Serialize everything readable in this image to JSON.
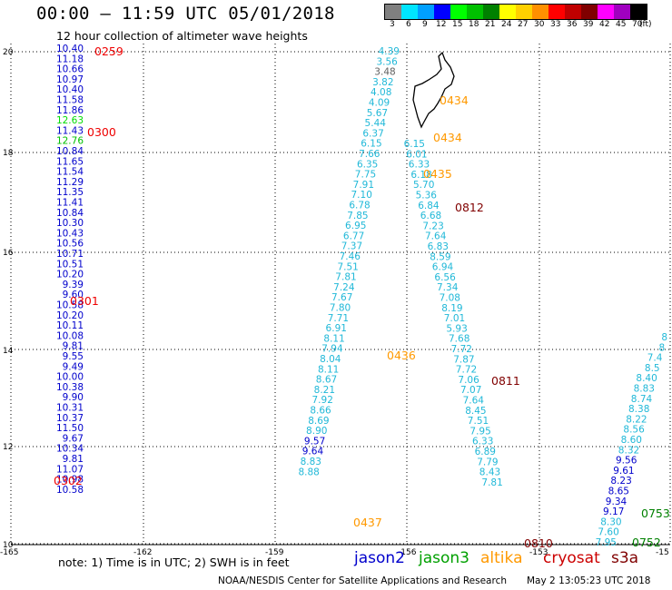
{
  "title": "00:00 – 11:59 UTC 05/01/2018",
  "subtitle": "12 hour collection of altimeter wave heights",
  "legend": {
    "unit": "(ft)",
    "bins": [
      {
        "label": "3",
        "color": "#808080"
      },
      {
        "label": "6",
        "color": "#00e5ff"
      },
      {
        "label": "9",
        "color": "#00a0ff"
      },
      {
        "label": "12",
        "color": "#0000ff"
      },
      {
        "label": "15",
        "color": "#00ff00"
      },
      {
        "label": "18",
        "color": "#00c000"
      },
      {
        "label": "21",
        "color": "#008000"
      },
      {
        "label": "24",
        "color": "#ffff00"
      },
      {
        "label": "27",
        "color": "#ffd000"
      },
      {
        "label": "30",
        "color": "#ff9000"
      },
      {
        "label": "33",
        "color": "#ff0000"
      },
      {
        "label": "36",
        "color": "#c00000"
      },
      {
        "label": "39",
        "color": "#800000"
      },
      {
        "label": "42",
        "color": "#ff00ff"
      },
      {
        "label": "45",
        "color": "#a000c0"
      },
      {
        "label": "70",
        "color": "#000000"
      }
    ]
  },
  "axes": {
    "lon_labels": [
      "-165",
      "-162",
      "-159",
      "-156",
      "-153",
      "-15"
    ],
    "lat_labels": [
      "20",
      "18",
      "16",
      "14",
      "12",
      "10"
    ]
  },
  "colors": {
    "jason2": "#0000cc",
    "jason3": "#00a000",
    "altika": "#ff9900",
    "cryosat": "#cc0000",
    "s3a": "#800000",
    "cyan": "#20b8d8"
  },
  "tracks": [
    {
      "id": "j2-west",
      "x": 92,
      "y0": 57,
      "dy": 11.3,
      "color": "#0000cc",
      "values": [
        "10.40",
        "11.18",
        "10.66",
        "10.97",
        "10.40",
        "11.58",
        "11.86",
        "12.63",
        "11.43",
        "12.76",
        "10.84",
        "11.65",
        "11.54",
        "11.29",
        "11.35",
        "11.41",
        "10.84",
        "10.30",
        "10.43",
        "10.56",
        "10.71",
        "10.51",
        "10.20",
        "9.39",
        "9.60",
        "10.58",
        "10.20",
        "10.11",
        "10.08",
        "9.81",
        "9.55",
        "9.49",
        "10.00",
        "10.38",
        "9.90",
        "10.31",
        "10.37",
        "11.50",
        "9.67",
        "10.34",
        "9.81",
        "11.07",
        "10.98",
        "10.58"
      ],
      "special": {
        "7": "#00dd00",
        "9": "#00c000"
      }
    },
    {
      "id": "cyan-a",
      "x": 440,
      "y0": 60,
      "dy": 11.3,
      "color": "#20b8d8",
      "diag": -0.25,
      "values": [
        "4.39",
        "3.56",
        "3.48",
        "3.82",
        "4.08",
        "4.09",
        "5.67",
        "5.44",
        "6.37",
        "6.15",
        "7.66",
        "6.35",
        "7.75",
        "7.91",
        "7.10",
        "6.78",
        "7.85",
        "6.95",
        "6.77",
        "7.37",
        "7.46",
        "7.51",
        "7.81",
        "7.24",
        "7.67",
        "7.80",
        "7.71",
        "6.91",
        "8.11",
        "7.94",
        "8.04",
        "8.11",
        "8.67",
        "8.21",
        "7.92",
        "8.66",
        "8.69",
        "8.90",
        "9.57",
        "9.64",
        "8.83",
        "8.88"
      ]
    },
    {
      "id": "cyan-b",
      "x": 468,
      "y0": 162,
      "dy": 11.3,
      "color": "#20b8d8",
      "diag": 0.23,
      "values": [
        "6.15",
        "6.01",
        "6.33",
        "6.18",
        "5.70",
        "5.36",
        "6.84",
        "6.68",
        "7.23",
        "7.64",
        "6.83",
        "8.59",
        "6.94",
        "6.56",
        "7.34",
        "7.08",
        "8.19",
        "7.01",
        "5.93",
        "7.68",
        "7.72",
        "7.87",
        "7.72",
        "7.06",
        "7.07",
        "7.64",
        "8.45",
        "7.51",
        "7.95",
        "6.33",
        "6.89",
        "7.79",
        "8.43",
        "7.81"
      ]
    },
    {
      "id": "cyan-c",
      "x": 735,
      "y0": 375,
      "dy": 11.3,
      "color": "#20b8d8",
      "diag": -0.22,
      "values": [
        "8",
        "8",
        "7.4",
        "8.5",
        "8.40",
        "8.83",
        "8.74",
        "8.38",
        "8.22",
        "8.56",
        "8.60",
        "8.32",
        "9.56",
        "9.61",
        "8.23",
        "8.65",
        "9.34",
        "9.17",
        "8.30",
        "7.60",
        "7.95"
      ]
    }
  ],
  "times": [
    {
      "text": "0259",
      "color": "#ee0000"
    },
    {
      "text": "0300",
      "color": "#ee0000"
    },
    {
      "text": "0301",
      "color": "#ee0000"
    },
    {
      "text": "0302",
      "color": "#ee0000"
    },
    {
      "text": "0434",
      "color": "#ff9900"
    },
    {
      "text": "0434",
      "color": "#ff9900"
    },
    {
      "text": "0435",
      "color": "#ff9900"
    },
    {
      "text": "0436",
      "color": "#ff9900"
    },
    {
      "text": "0437",
      "color": "#ff9900"
    },
    {
      "text": "0812",
      "color": "#800000"
    },
    {
      "text": "0811",
      "color": "#800000"
    },
    {
      "text": "0810",
      "color": "#800000"
    },
    {
      "text": "0753",
      "color": "#008000"
    },
    {
      "text": "0752",
      "color": "#008000"
    }
  ],
  "note": "note:  1) Time is in UTC;  2) SWH is in feet",
  "satellites": [
    "jason2",
    "jason3",
    "altika",
    "cryosat",
    "s3a"
  ],
  "credit": "NOAA/NESDIS Center for Satellite Applications and Research",
  "timestamp": "May  2 13:05:23 UTC 2018"
}
